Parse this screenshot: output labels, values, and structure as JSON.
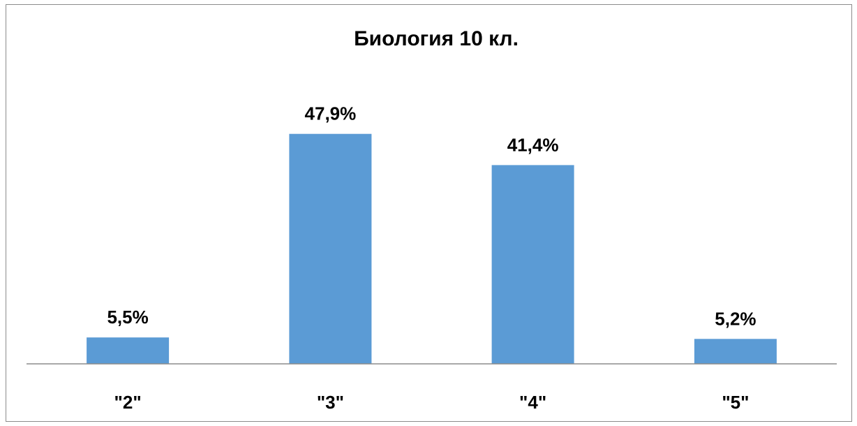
{
  "chart_data": {
    "type": "bar",
    "title": "Биология 10 кл.",
    "categories": [
      "\"2\"",
      "\"3\"",
      "\"4\"",
      "\"5\""
    ],
    "values": [
      5.5,
      47.9,
      41.4,
      5.2
    ],
    "data_labels": [
      "5,5%",
      "47,9%",
      "41,4%",
      "5,2%"
    ],
    "unit": "%",
    "xlabel": "",
    "ylabel": "",
    "ylim": [
      0,
      48
    ],
    "grid": false,
    "legend": "none",
    "bar_color": "#5b9bd5",
    "axis_color": "#8c8c8c"
  }
}
